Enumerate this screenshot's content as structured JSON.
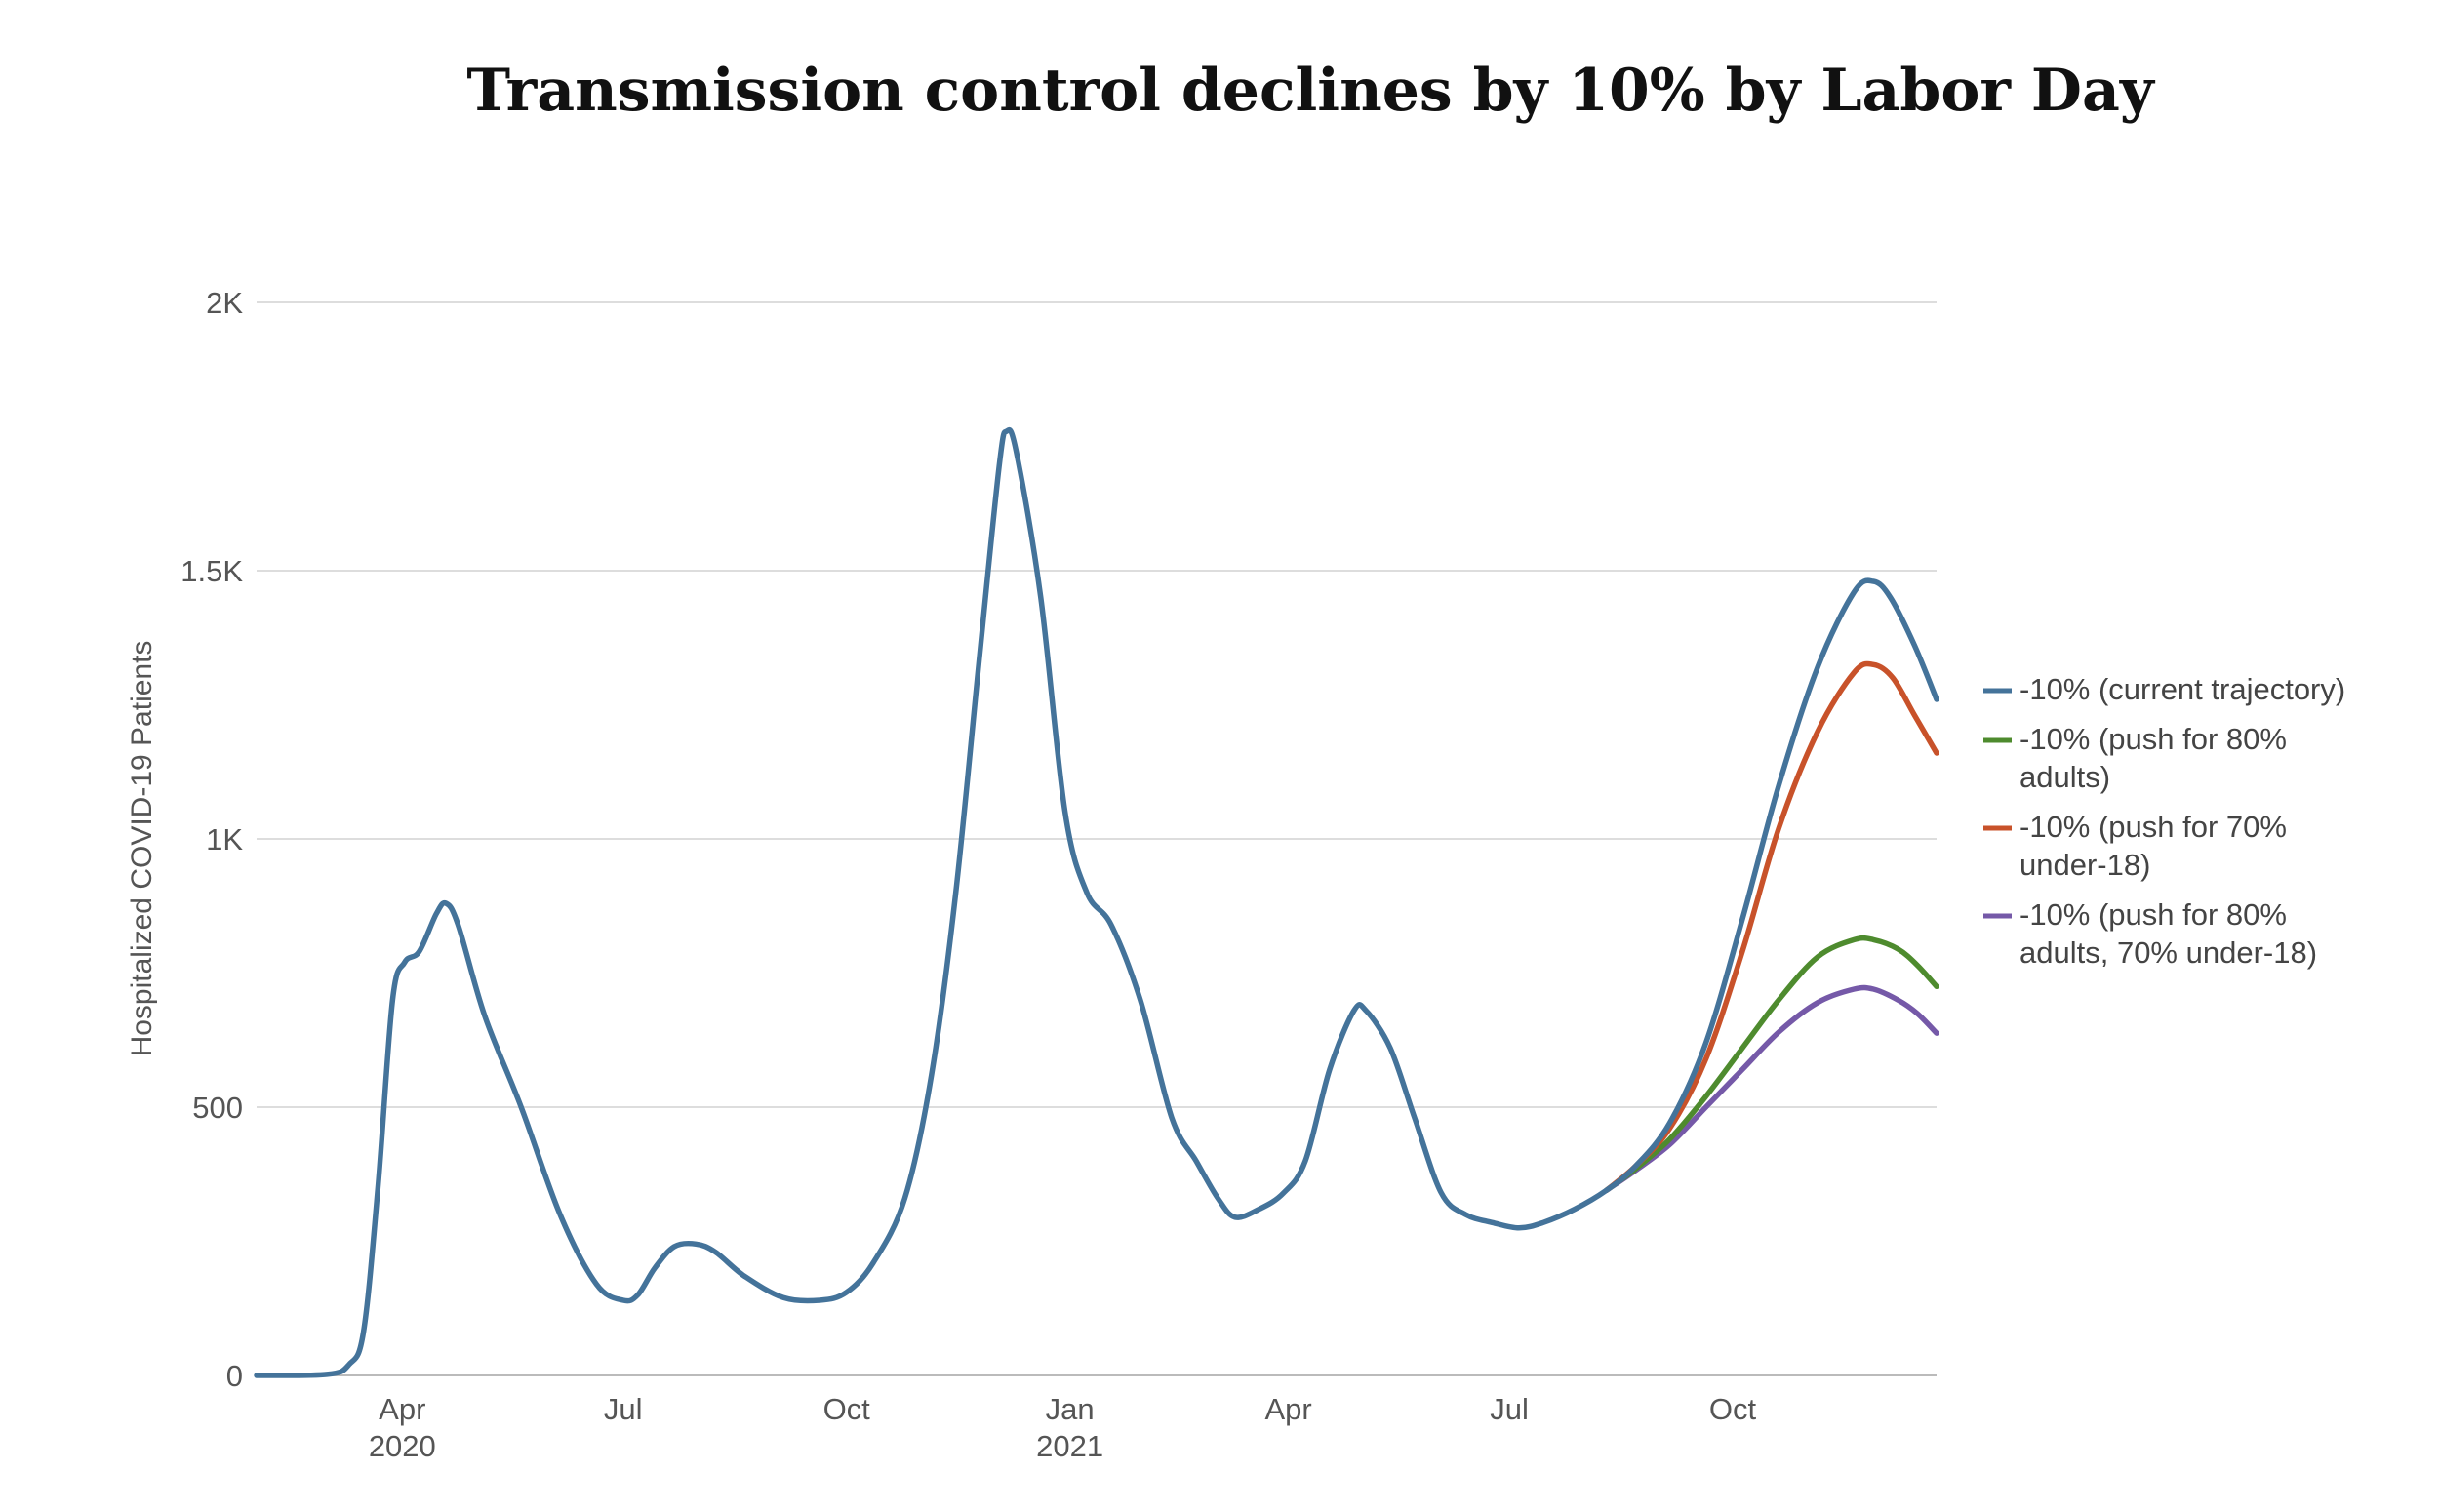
{
  "colors": {
    "background": "#ffffff",
    "grid": "#dddddd",
    "current": "#44739a",
    "adults80": "#4e8b2e",
    "under18_70": "#c8522a",
    "both": "#7559a8"
  },
  "chart_data": {
    "type": "line",
    "title": "Transmission control declines by 10% by Labor Day",
    "xlabel": "",
    "ylabel": "Hospitalized COVID-19 Patients",
    "ylim": [
      0,
      2000
    ],
    "xlim": [
      "2020-02-01",
      "2021-12-24"
    ],
    "grid": true,
    "legend_position": "right",
    "y_ticks": [
      {
        "value": 0,
        "label": "0"
      },
      {
        "value": 500,
        "label": "500"
      },
      {
        "value": 1000,
        "label": "1K"
      },
      {
        "value": 1500,
        "label": "1.5K"
      },
      {
        "value": 2000,
        "label": "2K"
      }
    ],
    "x_ticks": [
      {
        "date": "2020-04-01",
        "label": "Apr",
        "sublabel": "2020"
      },
      {
        "date": "2020-07-01",
        "label": "Jul",
        "sublabel": ""
      },
      {
        "date": "2020-10-01",
        "label": "Oct",
        "sublabel": ""
      },
      {
        "date": "2021-01-01",
        "label": "Jan",
        "sublabel": "2021"
      },
      {
        "date": "2021-04-01",
        "label": "Apr",
        "sublabel": ""
      },
      {
        "date": "2021-07-01",
        "label": "Jul",
        "sublabel": ""
      },
      {
        "date": "2021-10-01",
        "label": "Oct",
        "sublabel": ""
      }
    ],
    "series": [
      {
        "name": "-10% (current trajectory)",
        "legend_lines": [
          "-10% (current trajectory)"
        ],
        "color": "#44739a",
        "points": [
          [
            "2020-02-01",
            0
          ],
          [
            "2020-03-01",
            2
          ],
          [
            "2020-03-10",
            20
          ],
          [
            "2020-03-16",
            80
          ],
          [
            "2020-03-22",
            350
          ],
          [
            "2020-03-28",
            700
          ],
          [
            "2020-04-02",
            770
          ],
          [
            "2020-04-08",
            790
          ],
          [
            "2020-04-15",
            860
          ],
          [
            "2020-04-19",
            880
          ],
          [
            "2020-04-24",
            840
          ],
          [
            "2020-05-05",
            670
          ],
          [
            "2020-05-20",
            500
          ],
          [
            "2020-06-05",
            300
          ],
          [
            "2020-06-20",
            170
          ],
          [
            "2020-07-01",
            140
          ],
          [
            "2020-07-07",
            150
          ],
          [
            "2020-07-14",
            200
          ],
          [
            "2020-07-22",
            240
          ],
          [
            "2020-07-31",
            245
          ],
          [
            "2020-08-08",
            230
          ],
          [
            "2020-08-20",
            185
          ],
          [
            "2020-09-05",
            145
          ],
          [
            "2020-09-20",
            140
          ],
          [
            "2020-10-01",
            155
          ],
          [
            "2020-10-12",
            210
          ],
          [
            "2020-10-25",
            330
          ],
          [
            "2020-11-05",
            560
          ],
          [
            "2020-11-15",
            900
          ],
          [
            "2020-11-25",
            1350
          ],
          [
            "2020-12-03",
            1700
          ],
          [
            "2020-12-06",
            1760
          ],
          [
            "2020-12-10",
            1720
          ],
          [
            "2020-12-20",
            1450
          ],
          [
            "2020-12-30",
            1050
          ],
          [
            "2021-01-08",
            900
          ],
          [
            "2021-01-18",
            840
          ],
          [
            "2021-01-30",
            700
          ],
          [
            "2021-02-12",
            480
          ],
          [
            "2021-02-22",
            400
          ],
          [
            "2021-03-03",
            330
          ],
          [
            "2021-03-10",
            295
          ],
          [
            "2021-03-20",
            310
          ],
          [
            "2021-03-30",
            340
          ],
          [
            "2021-04-08",
            400
          ],
          [
            "2021-04-18",
            570
          ],
          [
            "2021-04-28",
            680
          ],
          [
            "2021-05-03",
            680
          ],
          [
            "2021-05-13",
            610
          ],
          [
            "2021-05-23",
            480
          ],
          [
            "2021-06-03",
            340
          ],
          [
            "2021-06-13",
            300
          ],
          [
            "2021-06-24",
            285
          ],
          [
            "2021-07-05",
            275
          ],
          [
            "2021-07-15",
            285
          ],
          [
            "2021-07-28",
            310
          ],
          [
            "2021-08-10",
            345
          ],
          [
            "2021-08-22",
            390
          ],
          [
            "2021-09-05",
            470
          ],
          [
            "2021-09-20",
            620
          ],
          [
            "2021-10-05",
            850
          ],
          [
            "2021-10-20",
            1100
          ],
          [
            "2021-11-05",
            1320
          ],
          [
            "2021-11-20",
            1460
          ],
          [
            "2021-11-28",
            1480
          ],
          [
            "2021-12-05",
            1450
          ],
          [
            "2021-12-15",
            1360
          ],
          [
            "2021-12-24",
            1260
          ]
        ]
      },
      {
        "name": "-10% (push for 80% adults)",
        "legend_lines": [
          "-10% (push for 80%",
          "adults)"
        ],
        "color": "#4e8b2e",
        "points": [
          [
            "2021-08-10",
            345
          ],
          [
            "2021-08-22",
            385
          ],
          [
            "2021-09-05",
            440
          ],
          [
            "2021-09-20",
            520
          ],
          [
            "2021-10-05",
            610
          ],
          [
            "2021-10-20",
            700
          ],
          [
            "2021-11-05",
            780
          ],
          [
            "2021-11-20",
            812
          ],
          [
            "2021-11-28",
            812
          ],
          [
            "2021-12-08",
            795
          ],
          [
            "2021-12-16",
            765
          ],
          [
            "2021-12-24",
            725
          ]
        ]
      },
      {
        "name": "-10% (push for 70% under-18)",
        "legend_lines": [
          "-10% (push for 70%",
          "under-18)"
        ],
        "color": "#c8522a",
        "points": [
          [
            "2021-08-10",
            345
          ],
          [
            "2021-08-22",
            390
          ],
          [
            "2021-09-05",
            460
          ],
          [
            "2021-09-20",
            590
          ],
          [
            "2021-10-05",
            790
          ],
          [
            "2021-10-20",
            1020
          ],
          [
            "2021-11-05",
            1200
          ],
          [
            "2021-11-20",
            1310
          ],
          [
            "2021-11-28",
            1325
          ],
          [
            "2021-12-06",
            1300
          ],
          [
            "2021-12-15",
            1230
          ],
          [
            "2021-12-24",
            1160
          ]
        ]
      },
      {
        "name": "-10% (push for 80% adults, 70% under-18)",
        "legend_lines": [
          "-10% (push for 80%",
          "adults, 70% under-18)"
        ],
        "color": "#7559a8",
        "points": [
          [
            "2021-08-10",
            345
          ],
          [
            "2021-08-22",
            382
          ],
          [
            "2021-09-05",
            430
          ],
          [
            "2021-09-20",
            500
          ],
          [
            "2021-10-05",
            570
          ],
          [
            "2021-10-20",
            640
          ],
          [
            "2021-11-05",
            695
          ],
          [
            "2021-11-20",
            720
          ],
          [
            "2021-11-28",
            720
          ],
          [
            "2021-12-08",
            700
          ],
          [
            "2021-12-16",
            675
          ],
          [
            "2021-12-24",
            638
          ]
        ]
      }
    ]
  }
}
